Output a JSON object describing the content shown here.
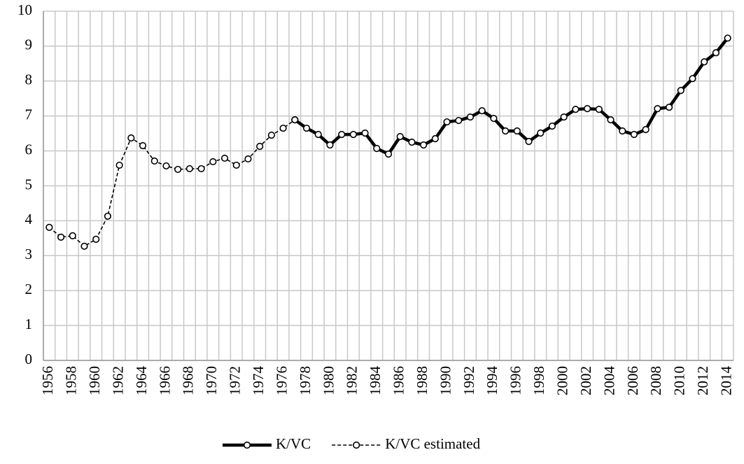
{
  "chart_data": {
    "type": "line",
    "categories": [
      "1956",
      null,
      "1958",
      null,
      "1960",
      null,
      "1962",
      null,
      "1964",
      null,
      "1966",
      null,
      "1968",
      null,
      "1970",
      null,
      "1972",
      null,
      "1974",
      null,
      "1976",
      null,
      "1978",
      null,
      "1980",
      null,
      "1982",
      null,
      "1984",
      null,
      "1986",
      null,
      "1988",
      null,
      "1990",
      null,
      "1992",
      null,
      "1994",
      null,
      "1996",
      null,
      "1998",
      null,
      "2000",
      null,
      "2002",
      null,
      "2004",
      null,
      "2006",
      null,
      "2008",
      null,
      "2010",
      null,
      "2012",
      null,
      "2014"
    ],
    "series": [
      {
        "name": "K/VC",
        "color": "#000000",
        "line_style": "solid",
        "values": [
          null,
          null,
          null,
          null,
          null,
          null,
          null,
          null,
          null,
          null,
          null,
          null,
          null,
          null,
          null,
          null,
          null,
          null,
          null,
          null,
          null,
          6.89,
          6.65,
          6.47,
          6.17,
          6.47,
          6.47,
          6.51,
          6.07,
          5.91,
          6.41,
          6.25,
          6.17,
          6.35,
          6.83,
          6.87,
          6.97,
          7.15,
          6.93,
          6.57,
          6.57,
          6.27,
          6.51,
          6.71,
          6.97,
          7.19,
          7.21,
          7.19,
          6.89,
          6.57,
          6.47,
          6.61,
          7.21,
          7.25,
          7.73,
          8.07,
          8.55,
          8.81,
          9.23
        ]
      },
      {
        "name": "K/VC estimated",
        "color": "#000000",
        "line_style": "dashed",
        "values": [
          3.81,
          3.53,
          3.57,
          3.27,
          3.47,
          4.13,
          5.59,
          6.37,
          6.15,
          5.71,
          5.57,
          5.47,
          5.49,
          5.49,
          5.69,
          5.79,
          5.59,
          5.77,
          6.13,
          6.45,
          6.65,
          6.89,
          null,
          null,
          null,
          null,
          null,
          null,
          null,
          null,
          null,
          null,
          null,
          null,
          null,
          null,
          null,
          null,
          null,
          null,
          null,
          null,
          null,
          null,
          null,
          null,
          null,
          null,
          null,
          null,
          null,
          null,
          null,
          null,
          null,
          null,
          null,
          null,
          null
        ]
      }
    ],
    "ylim": [
      0,
      10
    ],
    "yticks": [
      0,
      1,
      2,
      3,
      4,
      5,
      6,
      7,
      8,
      9,
      10
    ],
    "grid": true,
    "legend": "bottom"
  }
}
